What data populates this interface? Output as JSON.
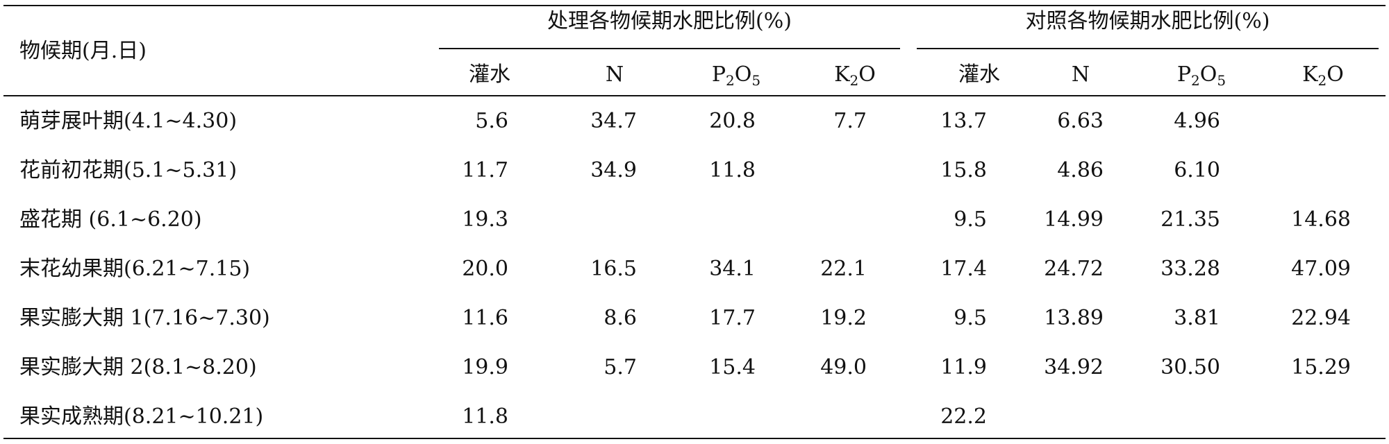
{
  "table": {
    "header": {
      "stage": "物候期(月.日)",
      "treatment_group": "处理各物候期水肥比例(%)",
      "control_group": "对照各物候期水肥比例(%)",
      "cols": {
        "irrigation": "灌水",
        "n": "N",
        "p_main": "P",
        "p_sub1": "2",
        "p_o": "O",
        "p_sub2": "5",
        "k_main": "K",
        "k_sub": "2",
        "k_o": "O"
      }
    },
    "rows": [
      {
        "stage": "萌芽展叶期(4.1~4.30)",
        "t_water": "5.6",
        "t_n": "34.7",
        "t_p": "20.8",
        "t_k": "7.7",
        "c_water": "13.7",
        "c_n": "6.63",
        "c_p": "4.96",
        "c_k": ""
      },
      {
        "stage": "花前初花期(5.1~5.31)",
        "t_water": "11.7",
        "t_n": "34.9",
        "t_p": "11.8",
        "t_k": "",
        "c_water": "15.8",
        "c_n": "4.86",
        "c_p": "6.10",
        "c_k": ""
      },
      {
        "stage": "盛花期 (6.1~6.20)",
        "t_water": "19.3",
        "t_n": "",
        "t_p": "",
        "t_k": "",
        "c_water": "9.5",
        "c_n": "14.99",
        "c_p": "21.35",
        "c_k": "14.68"
      },
      {
        "stage": "末花幼果期(6.21~7.15)",
        "t_water": "20.0",
        "t_n": "16.5",
        "t_p": "34.1",
        "t_k": "22.1",
        "c_water": "17.4",
        "c_n": "24.72",
        "c_p": "33.28",
        "c_k": "47.09"
      },
      {
        "stage": "果实膨大期 1(7.16~7.30)",
        "t_water": "11.6",
        "t_n": "8.6",
        "t_p": "17.7",
        "t_k": "19.2",
        "c_water": "9.5",
        "c_n": "13.89",
        "c_p": "3.81",
        "c_k": "22.94"
      },
      {
        "stage": "果实膨大期 2(8.1~8.20)",
        "t_water": "19.9",
        "t_n": "5.7",
        "t_p": "15.4",
        "t_k": "49.0",
        "c_water": "11.9",
        "c_n": "34.92",
        "c_p": "30.50",
        "c_k": "15.29"
      },
      {
        "stage": "果实成熟期(8.21~10.21)",
        "t_water": "11.8",
        "t_n": "",
        "t_p": "",
        "t_k": "",
        "c_water": "22.2",
        "c_n": "",
        "c_p": "",
        "c_k": ""
      }
    ]
  }
}
